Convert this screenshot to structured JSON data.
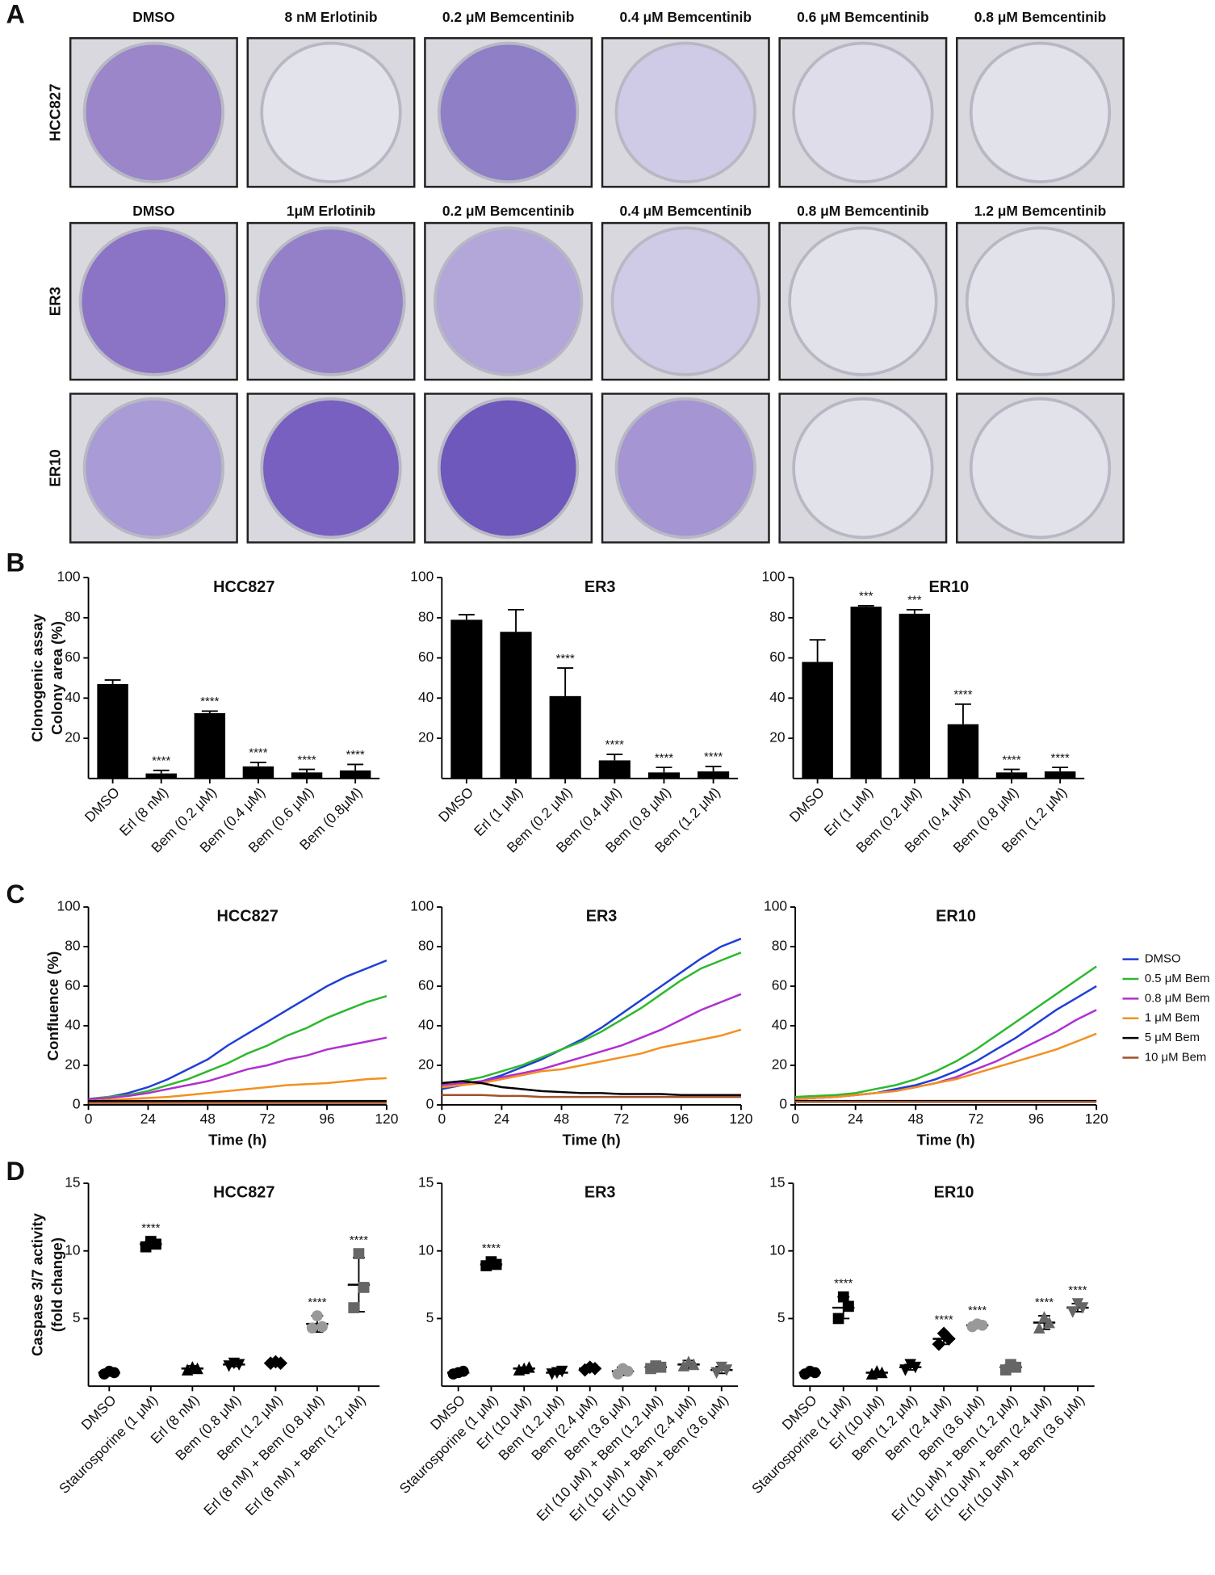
{
  "panel_labels": [
    "A",
    "B",
    "C",
    "D"
  ],
  "panel_a": {
    "rows": [
      {
        "label": "HCC827",
        "conditions": [
          "DMSO",
          "8 nM Erlotinib",
          "0.2 μM Bemcentinib",
          "0.4 μM Bemcentinib",
          "0.6 μM Bemcentinib",
          "0.8 μM Bemcentinib"
        ]
      },
      {
        "label": "ER3",
        "conditions": [
          "DMSO",
          "1μM Erlotinib",
          "0.2 μM Bemcentinib",
          "0.4 μM Bemcentinib",
          "0.8 μM Bemcentinib",
          "1.2 μM Bemcentinib"
        ]
      },
      {
        "label": "ER10"
      }
    ]
  },
  "chart_data": [
    {
      "type": "bar",
      "title": "HCC827",
      "y_label": [
        "Clonogenic assay",
        "Colony area (%)"
      ],
      "color": "#000000",
      "categories": [
        "DMSO",
        "Erl (8 nM)",
        "Bem (0.2 μM)",
        "Bem (0.4 μM)",
        "Bem (0.6 μM)",
        "Bem (0.8μM)"
      ],
      "values": [
        47,
        2.5,
        32.5,
        6,
        3,
        4
      ],
      "errors": [
        2,
        1.5,
        1,
        2,
        1.5,
        3
      ],
      "annotations": [
        null,
        "****",
        "****",
        "****",
        "****",
        "****"
      ],
      "ylim": [
        0,
        100
      ],
      "yticks": [
        20,
        40,
        60,
        80,
        100
      ]
    },
    {
      "type": "bar",
      "title": "ER3",
      "color": "#000000",
      "categories": [
        "DMSO",
        "Erl (1 μM)",
        "Bem (0.2 μM)",
        "Bem (0.4 μM)",
        "Bem (0.8 μM)",
        "Bem (1.2 μM)"
      ],
      "values": [
        79,
        73,
        41,
        9,
        3,
        3.5
      ],
      "errors": [
        2.5,
        11,
        14,
        3,
        2.5,
        2.5
      ],
      "annotations": [
        null,
        null,
        "****",
        "****",
        "****",
        "****"
      ],
      "ylim": [
        0,
        100
      ],
      "yticks": [
        20,
        40,
        60,
        80,
        100
      ]
    },
    {
      "type": "bar",
      "title": "ER10",
      "color": "#000000",
      "categories": [
        "DMSO",
        "Erl (1 μM)",
        "Bem (0.2 μM)",
        "Bem (0.4 μM)",
        "Bem (0.8 μM)",
        "Bem (1.2 μM)"
      ],
      "values": [
        58,
        85.5,
        82,
        27,
        3,
        3.5
      ],
      "errors": [
        11,
        0.5,
        2,
        10,
        1.5,
        2
      ],
      "annotations": [
        null,
        "***",
        "***",
        "****",
        "****",
        "****"
      ],
      "ylim": [
        0,
        100
      ],
      "yticks": [
        20,
        40,
        60,
        80,
        100
      ]
    },
    {
      "type": "line",
      "title": "HCC827",
      "y_label": [
        "Confluence (%)"
      ],
      "x_label": "Time (h)",
      "x": [
        0,
        8,
        16,
        24,
        32,
        40,
        48,
        56,
        64,
        72,
        80,
        88,
        96,
        104,
        112,
        120
      ],
      "xlim": [
        0,
        120
      ],
      "xticks": [
        0,
        24,
        48,
        72,
        96,
        120
      ],
      "ylim": [
        0,
        100
      ],
      "yticks": [
        0,
        20,
        40,
        60,
        80,
        100
      ],
      "series": [
        {
          "name": "DMSO",
          "color": "#1f3fd6",
          "values": [
            3,
            4,
            6,
            9,
            13,
            18,
            23,
            30,
            36,
            42,
            48,
            54,
            60,
            65,
            69,
            73
          ]
        },
        {
          "name": "0.5 μM Bem",
          "color": "#2db82d",
          "values": [
            3,
            4,
            5,
            7,
            10,
            13,
            17,
            21,
            26,
            30,
            35,
            39,
            44,
            48,
            52,
            55
          ]
        },
        {
          "name": "0.8 μM Bem",
          "color": "#b030d0",
          "values": [
            3,
            3.5,
            4.5,
            6,
            8,
            10,
            12,
            15,
            18,
            20,
            23,
            25,
            28,
            30,
            32,
            34
          ]
        },
        {
          "name": "1 μM Bem",
          "color": "#f39020",
          "values": [
            2,
            2.5,
            3,
            3.5,
            4,
            5,
            6,
            7,
            8,
            9,
            10,
            10.5,
            11,
            12,
            13,
            13.5
          ]
        },
        {
          "name": "5 μM Bem",
          "color": "#000000",
          "values": [
            2,
            2,
            2,
            2,
            2,
            2,
            2,
            2,
            2,
            2,
            2,
            2,
            2,
            2,
            2,
            2
          ]
        },
        {
          "name": "10 μM Bem",
          "color": "#a0522d",
          "values": [
            1,
            1,
            1,
            1,
            1,
            1,
            1,
            1,
            1,
            1,
            1,
            1,
            1,
            1,
            1,
            1
          ]
        }
      ]
    },
    {
      "type": "line",
      "title": "ER3",
      "x_label": "Time (h)",
      "x": [
        0,
        8,
        16,
        24,
        32,
        40,
        48,
        56,
        64,
        72,
        80,
        88,
        96,
        104,
        112,
        120
      ],
      "xlim": [
        0,
        120
      ],
      "xticks": [
        0,
        24,
        48,
        72,
        96,
        120
      ],
      "ylim": [
        0,
        100
      ],
      "yticks": [
        0,
        20,
        40,
        60,
        80,
        100
      ],
      "series": [
        {
          "name": "DMSO",
          "color": "#1f3fd6",
          "values": [
            8,
            10,
            12,
            15,
            19,
            23,
            28,
            33,
            39,
            46,
            53,
            60,
            67,
            74,
            80,
            84
          ]
        },
        {
          "name": "0.5 μM Bem",
          "color": "#2db82d",
          "values": [
            11,
            12,
            14,
            17,
            20,
            24,
            28,
            32,
            37,
            43,
            49,
            56,
            63,
            69,
            73,
            77
          ]
        },
        {
          "name": "0.8 μM Bem",
          "color": "#b030d0",
          "values": [
            10,
            11,
            12,
            14,
            16,
            18,
            21,
            24,
            27,
            30,
            34,
            38,
            43,
            48,
            52,
            56
          ]
        },
        {
          "name": "1 μM Bem",
          "color": "#f39020",
          "values": [
            9,
            10,
            11,
            13,
            15,
            17,
            18,
            20,
            22,
            24,
            26,
            29,
            31,
            33,
            35,
            38
          ]
        },
        {
          "name": "5 μM Bem",
          "color": "#000000",
          "values": [
            11,
            12,
            11,
            9,
            8,
            7,
            6.5,
            6,
            6,
            5.5,
            5.5,
            5.5,
            5,
            5,
            5,
            5
          ]
        },
        {
          "name": "10 μM Bem",
          "color": "#a0522d",
          "values": [
            5,
            5,
            5,
            4.5,
            4.5,
            4,
            4,
            4,
            4,
            4,
            4,
            4,
            4,
            4,
            4,
            4
          ]
        }
      ]
    },
    {
      "type": "line",
      "title": "ER10",
      "x_label": "Time (h)",
      "legend": "right",
      "x": [
        0,
        8,
        16,
        24,
        32,
        40,
        48,
        56,
        64,
        72,
        80,
        88,
        96,
        104,
        112,
        120
      ],
      "xlim": [
        0,
        120
      ],
      "xticks": [
        0,
        24,
        48,
        72,
        96,
        120
      ],
      "ylim": [
        0,
        100
      ],
      "yticks": [
        0,
        20,
        40,
        60,
        80,
        100
      ],
      "series": [
        {
          "name": "DMSO",
          "color": "#1f3fd6",
          "values": [
            3,
            3.5,
            4,
            5,
            6,
            8,
            10,
            13,
            17,
            22,
            28,
            34,
            41,
            48,
            54,
            60
          ]
        },
        {
          "name": "0.5 μM Bem",
          "color": "#2db82d",
          "values": [
            4,
            4.5,
            5,
            6,
            8,
            10,
            13,
            17,
            22,
            28,
            35,
            42,
            49,
            56,
            63,
            70
          ]
        },
        {
          "name": "0.8 μM Bem",
          "color": "#b030d0",
          "values": [
            3,
            3.5,
            4,
            5,
            6,
            7,
            9,
            11,
            14,
            18,
            22,
            27,
            32,
            37,
            43,
            48
          ]
        },
        {
          "name": "1 μM Bem",
          "color": "#f39020",
          "values": [
            3,
            3.5,
            4,
            5,
            6,
            7,
            9,
            11,
            13,
            16,
            19,
            22,
            25,
            28,
            32,
            36
          ]
        },
        {
          "name": "5 μM Bem",
          "color": "#000000",
          "values": [
            2,
            2,
            2,
            2,
            2,
            2,
            2,
            2,
            2,
            2,
            2,
            2,
            2,
            2,
            2,
            2
          ]
        },
        {
          "name": "10 μM Bem",
          "color": "#a0522d",
          "values": [
            1.5,
            1.5,
            1.5,
            1.5,
            1.5,
            1.5,
            1.5,
            1.5,
            1.5,
            1.5,
            1.5,
            1.5,
            1.5,
            1.5,
            1.5,
            1.5
          ]
        }
      ]
    },
    {
      "type": "dot",
      "title": "HCC827",
      "y_label": [
        "Caspase 3/7 activity",
        "(fold change)"
      ],
      "categories": [
        "DMSO",
        "Staurosporine (1 μM)",
        "Erl (8 nM)",
        "Bem (0.8 μM)",
        "Bem (1.2 μM)",
        "Erl (8 nM) + Bem (0.8 μM)",
        "Erl (8 nM) + Bem (1.2 μM)"
      ],
      "means": [
        1.0,
        10.5,
        1.3,
        1.6,
        1.7,
        4.6,
        7.5
      ],
      "sd": [
        0.15,
        0.2,
        0.2,
        0.15,
        0.1,
        0.6,
        2.0
      ],
      "points": [
        [
          0.9,
          1.1,
          1.0
        ],
        [
          10.3,
          10.7,
          10.5
        ],
        [
          1.2,
          1.4,
          1.3
        ],
        [
          1.5,
          1.7,
          1.6
        ],
        [
          1.7,
          1.8,
          1.7
        ],
        [
          4.3,
          5.2,
          4.4
        ],
        [
          5.8,
          9.8,
          7.3
        ]
      ],
      "markers": [
        "circle",
        "square",
        "triangle",
        "triangle-down",
        "diamond",
        "circle",
        "square"
      ],
      "marker_colors": [
        "#000000",
        "#000000",
        "#000000",
        "#000000",
        "#000000",
        "#999999",
        "#666666"
      ],
      "annotations": [
        null,
        "****",
        null,
        null,
        null,
        "****",
        "****"
      ],
      "ylim": [
        0,
        15
      ],
      "yticks": [
        5,
        10,
        15
      ]
    },
    {
      "type": "dot",
      "title": "ER3",
      "categories": [
        "DMSO",
        "Staurosporine (1 μM)",
        "Erl (10 μM)",
        "Bem (1.2 μM)",
        "Bem (2.4 μM)",
        "Bem (3.6 μM)",
        "Erl (10 μM) + Bem (1.2 μM)",
        "Erl (10 μM) + Bem (2.4 μM)",
        "Erl (10 μM) + Bem (3.6 μM)"
      ],
      "means": [
        1.0,
        9.0,
        1.3,
        1.0,
        1.3,
        1.1,
        1.4,
        1.6,
        1.2
      ],
      "sd": [
        0.1,
        0.2,
        0.1,
        0.1,
        0.1,
        0.3,
        0.15,
        0.3,
        0.25
      ],
      "points": [
        [
          0.9,
          1.0,
          1.1
        ],
        [
          8.9,
          9.2,
          9.0
        ],
        [
          1.2,
          1.3,
          1.4
        ],
        [
          0.9,
          1.0,
          1.1
        ],
        [
          1.2,
          1.4,
          1.3
        ],
        [
          0.9,
          1.3,
          1.1
        ],
        [
          1.3,
          1.5,
          1.4
        ],
        [
          1.5,
          1.8,
          1.6
        ],
        [
          1.0,
          1.4,
          1.2
        ]
      ],
      "markers": [
        "circle",
        "square",
        "triangle",
        "triangle-down",
        "diamond",
        "circle",
        "square",
        "triangle",
        "triangle-down"
      ],
      "marker_colors": [
        "#000000",
        "#000000",
        "#000000",
        "#000000",
        "#000000",
        "#999999",
        "#666666",
        "#666666",
        "#666666"
      ],
      "annotations": [
        null,
        "****",
        null,
        null,
        null,
        null,
        null,
        null,
        null
      ],
      "ylim": [
        0,
        15
      ],
      "yticks": [
        5,
        10,
        15
      ]
    },
    {
      "type": "dot",
      "title": "ER10",
      "categories": [
        "DMSO",
        "Staurosporine (1 μM)",
        "Erl (10 μM)",
        "Bem (1.2 μM)",
        "Bem (2.4 μM)",
        "Bem (3.6 μM)",
        "Erl (10 μM) + Bem (1.2 μM)",
        "Erl (10 μM) + Bem (2.4 μM)",
        "Erl (10 μM) + Bem (3.6 μM)"
      ],
      "means": [
        1.0,
        5.8,
        1.0,
        1.4,
        3.5,
        4.5,
        1.4,
        4.7,
        5.8
      ],
      "sd": [
        0.15,
        0.8,
        0.1,
        0.2,
        0.4,
        0.1,
        0.2,
        0.5,
        0.3
      ],
      "points": [
        [
          0.9,
          1.1,
          1.0
        ],
        [
          5.0,
          6.6,
          5.9
        ],
        [
          0.9,
          1.1,
          1.0
        ],
        [
          1.2,
          1.6,
          1.4
        ],
        [
          3.1,
          3.9,
          3.5
        ],
        [
          4.4,
          4.6,
          4.5
        ],
        [
          1.2,
          1.6,
          1.4
        ],
        [
          4.3,
          5.1,
          4.7
        ],
        [
          5.5,
          6.1,
          5.8
        ]
      ],
      "markers": [
        "circle",
        "square",
        "triangle",
        "triangle-down",
        "diamond",
        "circle",
        "square",
        "triangle",
        "triangle-down"
      ],
      "marker_colors": [
        "#000000",
        "#000000",
        "#000000",
        "#000000",
        "#000000",
        "#999999",
        "#666666",
        "#666666",
        "#666666"
      ],
      "annotations": [
        null,
        "****",
        null,
        null,
        "****",
        "****",
        null,
        "****",
        "****"
      ],
      "ylim": [
        0,
        15
      ],
      "yticks": [
        5,
        10,
        15
      ]
    }
  ]
}
